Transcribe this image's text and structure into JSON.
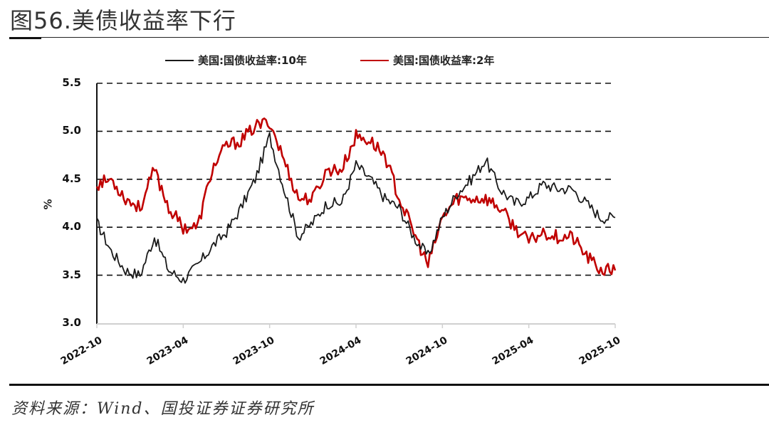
{
  "figure": {
    "title": "图56.美债收益率下行",
    "source": "资料来源：Wind、国投证券证券研究所"
  },
  "legend": [
    {
      "label": "美国:国债收益率:10年",
      "color": "#1a1a1a"
    },
    {
      "label": "美国:国债收益率:2年",
      "color": "#c00000"
    }
  ],
  "chart_data": {
    "type": "line",
    "title": "美债收益率下行",
    "xlabel": "",
    "ylabel": "%",
    "ylim": [
      3.0,
      5.5
    ],
    "yticks": [
      "5.5",
      "5.0",
      "4.5",
      "4.0",
      "3.5",
      "3.0"
    ],
    "xticks": [
      "2022-10",
      "2023-04",
      "2023-10",
      "2024-04",
      "2024-10",
      "2025-04",
      "2025-10"
    ],
    "grid": "horizontal dashed",
    "legend_position": "top",
    "x": [
      "2022-10",
      "2022-11",
      "2022-12",
      "2023-01",
      "2023-02",
      "2023-03",
      "2023-04",
      "2023-05",
      "2023-06",
      "2023-07",
      "2023-08",
      "2023-09",
      "2023-10",
      "2023-11",
      "2023-12",
      "2024-01",
      "2024-02",
      "2024-03",
      "2024-04",
      "2024-05",
      "2024-06",
      "2024-07",
      "2024-08",
      "2024-09",
      "2024-10",
      "2024-11",
      "2024-12",
      "2025-01",
      "2025-02",
      "2025-03",
      "2025-04",
      "2025-05",
      "2025-06",
      "2025-07",
      "2025-08",
      "2025-09",
      "2025-10"
    ],
    "series": [
      {
        "name": "美国:国债收益率:10年",
        "color": "#1a1a1a",
        "values": [
          4.05,
          3.75,
          3.55,
          3.5,
          3.9,
          3.55,
          3.45,
          3.6,
          3.8,
          3.95,
          4.2,
          4.5,
          4.95,
          4.4,
          3.9,
          4.05,
          4.25,
          4.25,
          4.65,
          4.5,
          4.3,
          4.2,
          3.9,
          3.7,
          4.1,
          4.35,
          4.5,
          4.7,
          4.4,
          4.25,
          4.3,
          4.45,
          4.4,
          4.4,
          4.25,
          4.1,
          4.1
        ]
      },
      {
        "name": "美国:国债收益率:2年",
        "color": "#c00000",
        "values": [
          4.45,
          4.5,
          4.3,
          4.2,
          4.6,
          4.2,
          4.0,
          4.0,
          4.6,
          4.85,
          4.9,
          5.05,
          5.1,
          4.7,
          4.3,
          4.3,
          4.6,
          4.6,
          4.95,
          4.9,
          4.75,
          4.3,
          3.95,
          3.6,
          4.1,
          4.3,
          4.3,
          4.3,
          4.2,
          4.0,
          3.85,
          3.95,
          3.9,
          3.9,
          3.7,
          3.55,
          3.55
        ]
      }
    ]
  }
}
